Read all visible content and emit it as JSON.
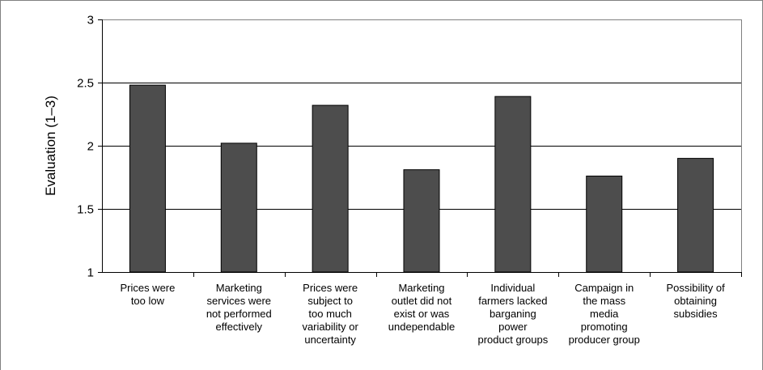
{
  "chart_data": {
    "type": "bar",
    "title": "",
    "xlabel": "",
    "ylabel": "Evaluation (1–3)",
    "ylim": [
      1,
      3
    ],
    "yticks": [
      "1",
      "1.5",
      "2",
      "2.5",
      "3"
    ],
    "grid": true,
    "categories": [
      [
        "Prices were",
        "too low"
      ],
      [
        "Marketing",
        "services were",
        "not performed",
        "effectively"
      ],
      [
        "Prices were",
        "subject to",
        "too much",
        "variability or",
        "uncertainty"
      ],
      [
        "Marketing",
        "outlet did not",
        "exist or was",
        "undependable"
      ],
      [
        "Individual",
        "farmers lacked",
        "barganing",
        "power",
        "product groups"
      ],
      [
        "Campaign in",
        "the mass",
        "media",
        "promoting",
        "producer group"
      ],
      [
        "Possibility of",
        "obtaining",
        "subsidies"
      ]
    ],
    "values": [
      2.48,
      2.02,
      2.32,
      1.81,
      2.39,
      1.76,
      1.9
    ],
    "colors": {
      "bar": "#4d4d4d",
      "grid": "#000000",
      "frame": "#808080"
    }
  }
}
